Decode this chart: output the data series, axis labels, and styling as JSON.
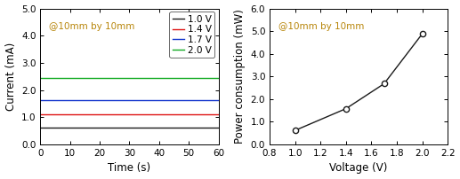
{
  "left": {
    "annotation": "@10mm by 10mm",
    "xlabel": "Time (s)",
    "ylabel": "Current (mA)",
    "xlim": [
      0,
      60
    ],
    "ylim": [
      0.0,
      5.0
    ],
    "yticks": [
      0.0,
      1.0,
      2.0,
      3.0,
      4.0,
      5.0
    ],
    "yticklabels": [
      "0.0",
      "1.0",
      "2.0",
      "3.0",
      "4.0",
      "5.0"
    ],
    "xticks": [
      0,
      10,
      20,
      30,
      40,
      50,
      60
    ],
    "lines": [
      {
        "label": "1.0 V",
        "color": "#1a1a1a",
        "y_val": 0.62
      },
      {
        "label": "1.4 V",
        "color": "#dd1111",
        "y_val": 1.1
      },
      {
        "label": "1.7 V",
        "color": "#1133cc",
        "y_val": 1.62
      },
      {
        "label": "2.0 V",
        "color": "#11aa22",
        "y_val": 2.43
      }
    ]
  },
  "right": {
    "annotation": "@10mm by 10mm",
    "xlabel": "Voltage (V)",
    "ylabel": "Power consumption (mW)",
    "xlim": [
      0.8,
      2.2
    ],
    "ylim": [
      0.0,
      6.0
    ],
    "yticks": [
      0.0,
      1.0,
      2.0,
      3.0,
      4.0,
      5.0,
      6.0
    ],
    "yticklabels": [
      "0.0",
      "1.0",
      "2.0",
      "3.0",
      "4.0",
      "5.0",
      "6.0"
    ],
    "xticks": [
      0.8,
      1.0,
      1.2,
      1.4,
      1.6,
      1.8,
      2.0,
      2.2
    ],
    "xticklabels": [
      "0.8",
      "1.0",
      "1.2",
      "1.4",
      "1.6",
      "1.8",
      "2.0",
      "2.2"
    ],
    "voltage": [
      1.0,
      1.4,
      1.7,
      2.0
    ],
    "power": [
      0.62,
      1.58,
      2.68,
      4.88
    ],
    "line_color": "#1a1a1a",
    "marker": "o",
    "markersize": 4.5
  },
  "annotation_color": "#b8860b",
  "annotation_fontsize": 7.5,
  "label_fontsize": 8.5,
  "tick_fontsize": 7.5,
  "legend_fontsize": 7.5
}
